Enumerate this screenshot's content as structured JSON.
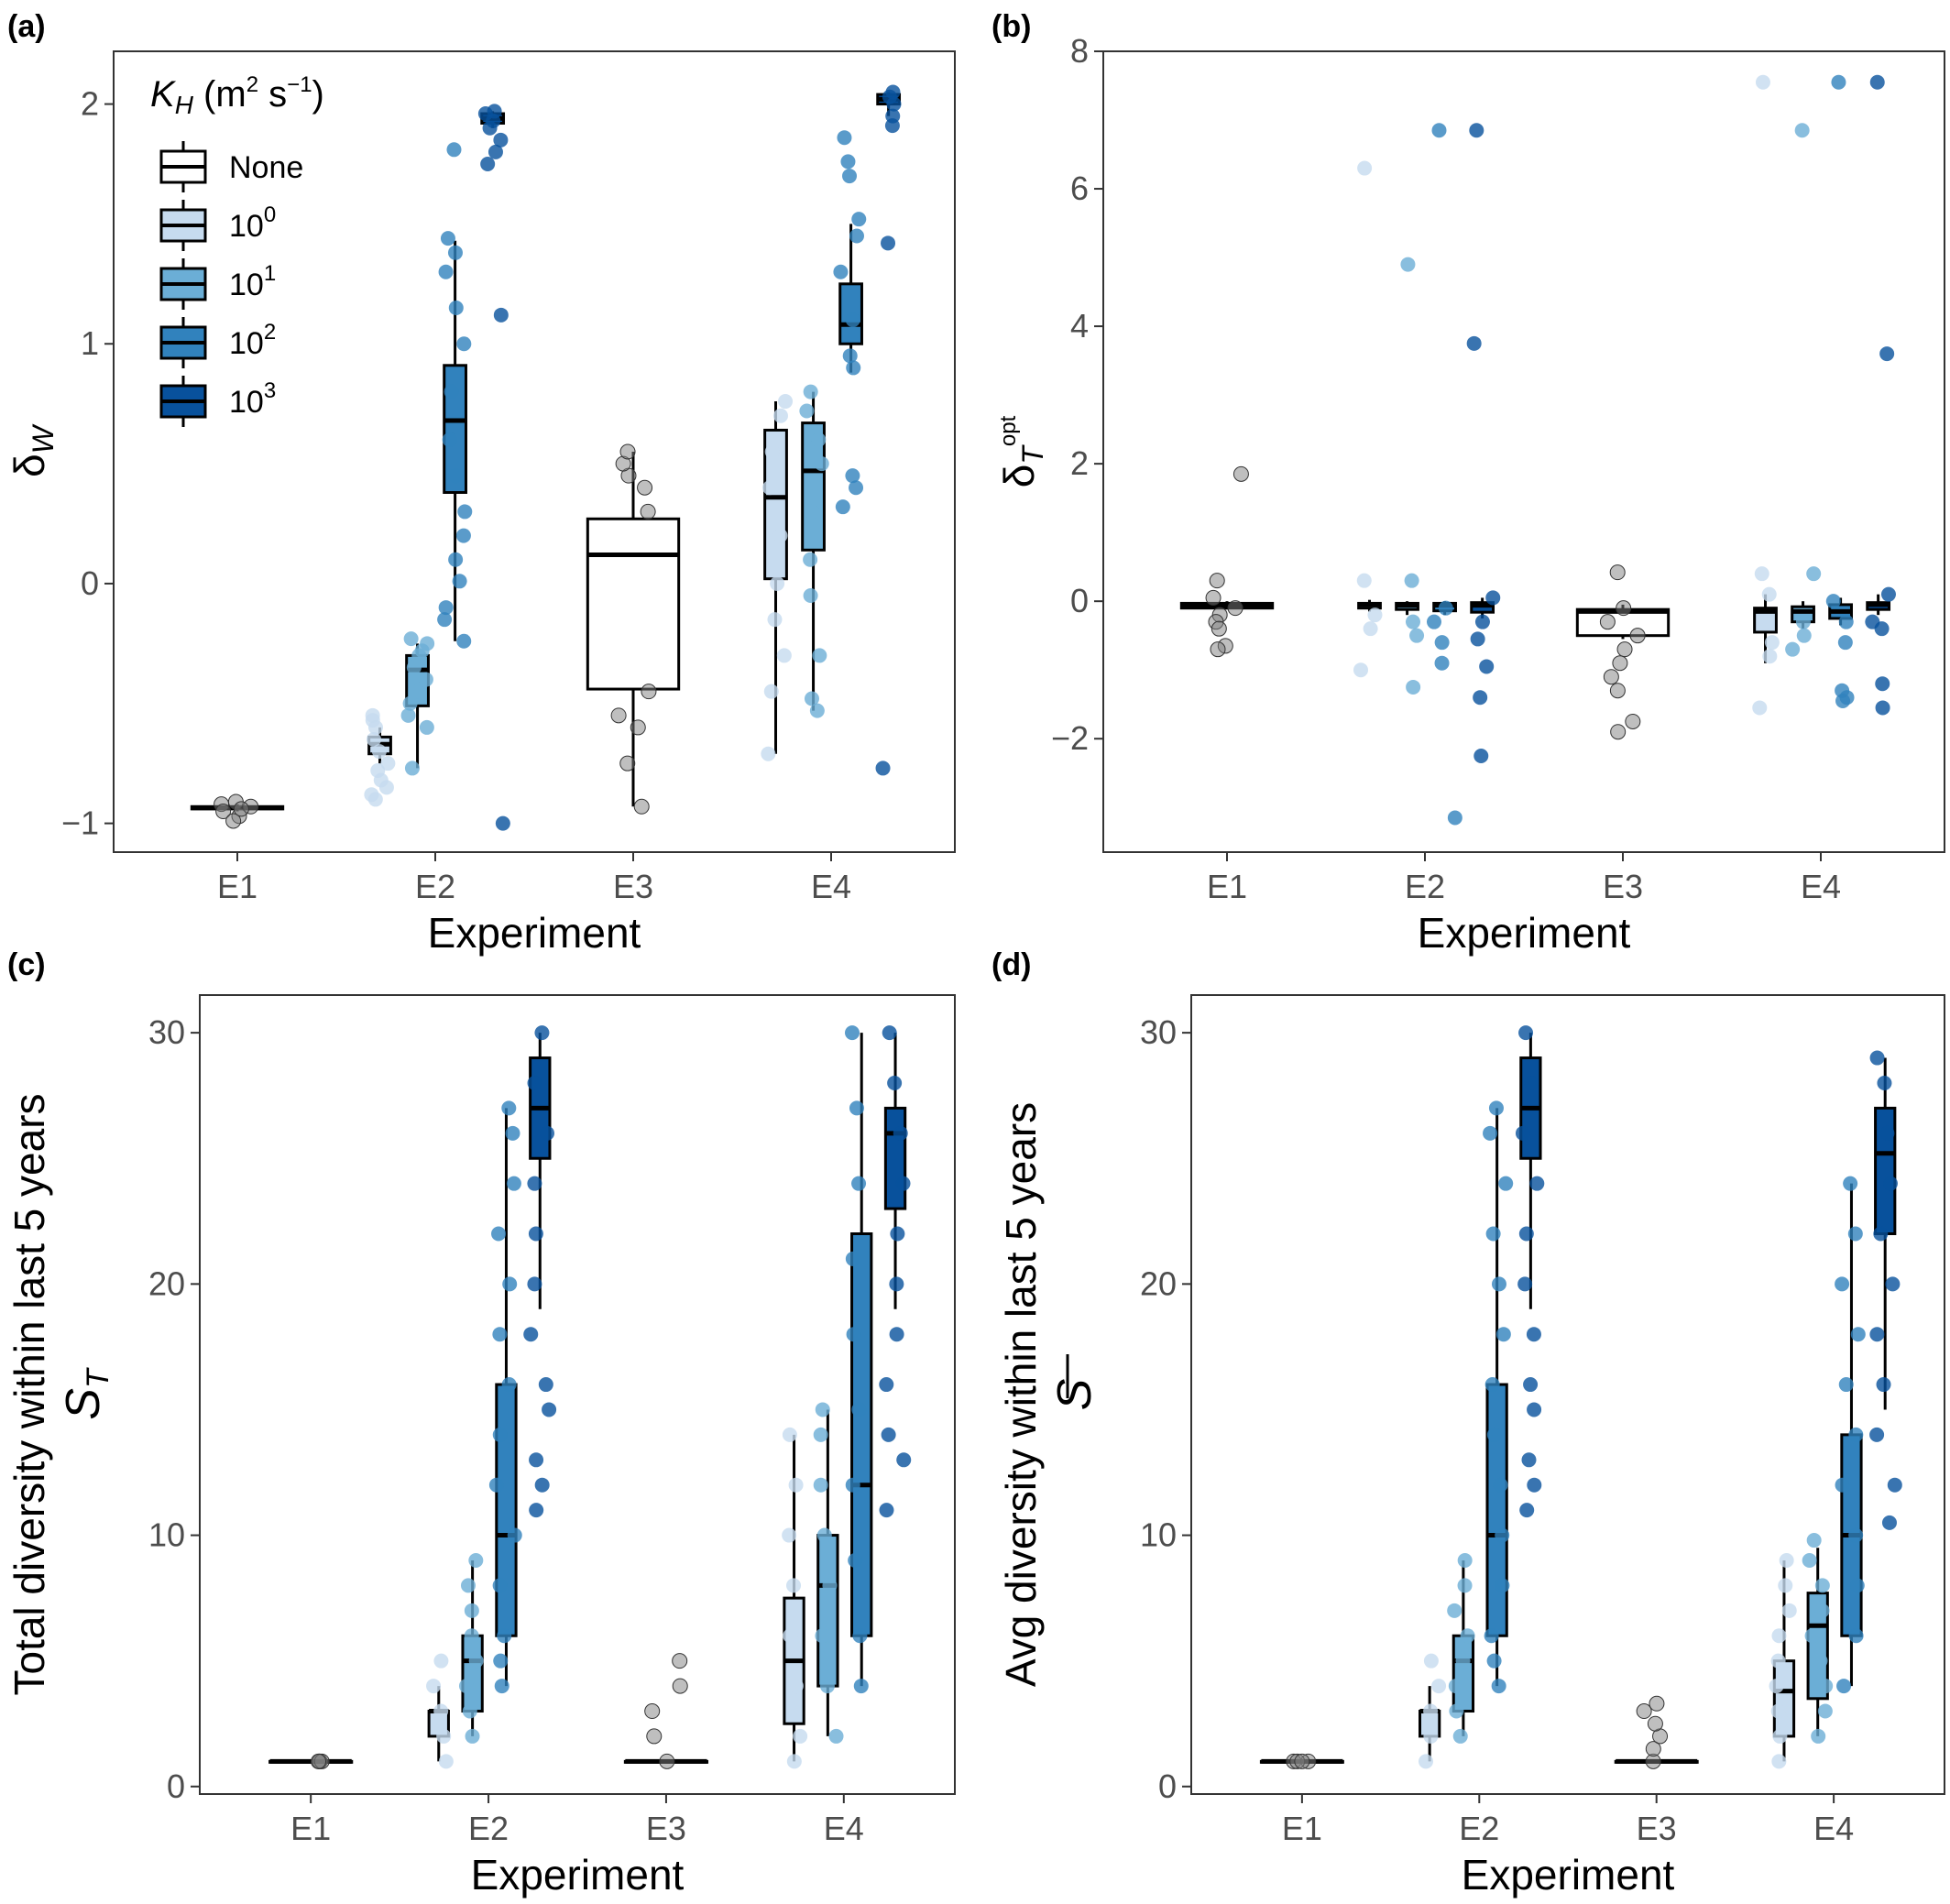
{
  "legend": {
    "title_main": "K",
    "title_sub": "H",
    "title_unit": "(m",
    "title_unit_sup": "2",
    "title_unit_rest": "s",
    "title_unit_sup2": "−1",
    "title_close": ")",
    "placement": "top-left inside panel (a)",
    "items": [
      {
        "label": "None",
        "base": "",
        "exp": "",
        "color": "#ffffff"
      },
      {
        "label": "",
        "base": "10",
        "exp": "0",
        "color": "#c6dbef"
      },
      {
        "label": "",
        "base": "10",
        "exp": "1",
        "color": "#6baed6"
      },
      {
        "label": "",
        "base": "10",
        "exp": "2",
        "color": "#3182bd"
      },
      {
        "label": "",
        "base": "10",
        "exp": "3",
        "color": "#08519c"
      }
    ]
  },
  "chart_data": [
    {
      "panel": "(a)",
      "type": "box",
      "xlabel": "Experiment",
      "ylabel_main": "δ",
      "ylabel_sub": "W",
      "ylabel_sup": "",
      "ylim": [
        -1.12,
        2.22
      ],
      "yticks": [
        -1,
        0,
        1,
        2
      ],
      "yticklabels": [
        "−1",
        "0",
        "1",
        "2"
      ],
      "categories": [
        "E1",
        "E2",
        "E3",
        "E4"
      ],
      "grid": false,
      "boxes": [
        {
          "cat": 0,
          "kh": 0,
          "q1": -0.94,
          "median": -0.935,
          "q3": -0.93,
          "whisker_low": -0.95,
          "whisker_high": -0.92,
          "points": [
            -0.92,
            -0.93,
            -0.95,
            -0.97,
            -0.99,
            -0.91,
            -0.94
          ]
        },
        {
          "cat": 1,
          "kh": 1,
          "q1": -0.71,
          "median": -0.67,
          "q3": -0.64,
          "whisker_low": -0.75,
          "whisker_high": -0.6,
          "points": [
            -0.9,
            -0.88,
            -0.85,
            -0.82,
            -0.78,
            -0.75,
            -0.7,
            -0.65,
            -0.6,
            -0.57,
            -0.55
          ]
        },
        {
          "cat": 1,
          "kh": 2,
          "q1": -0.51,
          "median": -0.36,
          "q3": -0.3,
          "whisker_low": -0.77,
          "whisker_high": -0.25,
          "points": [
            -0.77,
            -0.6,
            -0.55,
            -0.5,
            -0.45,
            -0.4,
            -0.35,
            -0.3,
            -0.28,
            -0.25,
            -0.23
          ]
        },
        {
          "cat": 1,
          "kh": 3,
          "q1": 0.38,
          "median": 0.68,
          "q3": 0.91,
          "whisker_low": -0.24,
          "whisker_high": 1.43,
          "points": [
            -0.24,
            -0.15,
            -0.1,
            0.01,
            0.1,
            0.2,
            0.3,
            0.45,
            0.6,
            0.8,
            1.0,
            1.15,
            1.3,
            1.38,
            1.44,
            1.81
          ]
        },
        {
          "cat": 1,
          "kh": 4,
          "q1": 1.92,
          "median": 1.94,
          "q3": 1.96,
          "whisker_low": 1.9,
          "whisker_high": 1.97,
          "points": [
            1.97,
            1.96,
            1.93,
            1.9,
            1.85,
            1.8,
            1.75,
            1.12,
            -1.0
          ]
        },
        {
          "cat": 2,
          "kh": 0,
          "q1": -0.44,
          "median": 0.12,
          "q3": 0.27,
          "whisker_low": -0.93,
          "whisker_high": 0.55,
          "points": [
            -0.93,
            -0.75,
            -0.6,
            -0.55,
            -0.45,
            0.3,
            0.4,
            0.45,
            0.5,
            0.55
          ]
        },
        {
          "cat": 3,
          "kh": 1,
          "q1": 0.02,
          "median": 0.36,
          "q3": 0.64,
          "whisker_low": -0.71,
          "whisker_high": 0.76,
          "points": [
            -0.71,
            -0.45,
            -0.3,
            -0.15,
            0.0,
            0.2,
            0.4,
            0.55,
            0.7,
            0.76
          ]
        },
        {
          "cat": 3,
          "kh": 2,
          "q1": 0.14,
          "median": 0.47,
          "q3": 0.67,
          "whisker_low": -0.53,
          "whisker_high": 0.8,
          "points": [
            -0.53,
            -0.48,
            -0.3,
            -0.05,
            0.1,
            0.3,
            0.5,
            0.6,
            0.72,
            0.8
          ]
        },
        {
          "cat": 3,
          "kh": 3,
          "q1": 1.0,
          "median": 1.08,
          "q3": 1.25,
          "whisker_low": 0.88,
          "whisker_high": 1.5,
          "points": [
            0.32,
            0.4,
            0.45,
            0.9,
            0.95,
            1.1,
            1.3,
            1.45,
            1.52,
            1.7,
            1.76,
            1.86
          ]
        },
        {
          "cat": 3,
          "kh": 4,
          "q1": 2.0,
          "median": 2.02,
          "q3": 2.04,
          "whisker_low": 1.95,
          "whisker_high": 2.05,
          "points": [
            2.05,
            2.03,
            2.0,
            1.95,
            1.91,
            1.42,
            -0.77
          ]
        }
      ]
    },
    {
      "panel": "(b)",
      "type": "box",
      "xlabel": "Experiment",
      "ylabel_main": "δ",
      "ylabel_sub": "T",
      "ylabel_sup": "opt",
      "ylim": [
        -3.65,
        8.0
      ],
      "yticks": [
        -2,
        0,
        2,
        4,
        6,
        8
      ],
      "yticklabels": [
        "−2",
        "0",
        "2",
        "4",
        "6",
        "8"
      ],
      "categories": [
        "E1",
        "E2",
        "E3",
        "E4"
      ],
      "grid": false,
      "boxes": [
        {
          "cat": 0,
          "kh": 0,
          "q1": -0.1,
          "median": -0.06,
          "q3": -0.03,
          "whisker_low": -0.12,
          "whisker_high": 0.0,
          "points": [
            1.85,
            0.3,
            0.05,
            -0.1,
            -0.2,
            -0.3,
            -0.4,
            -0.65,
            -0.7
          ]
        },
        {
          "cat": 1,
          "kh": 1,
          "q1": -0.1,
          "median": -0.05,
          "q3": -0.03,
          "whisker_low": -0.15,
          "whisker_high": 0.02,
          "points": [
            6.3,
            0.3,
            -0.2,
            -0.4,
            -1.0
          ]
        },
        {
          "cat": 1,
          "kh": 2,
          "q1": -0.12,
          "median": -0.06,
          "q3": -0.03,
          "whisker_low": -0.2,
          "whisker_high": 0.0,
          "points": [
            4.9,
            0.3,
            -0.3,
            -0.5,
            -1.25
          ]
        },
        {
          "cat": 1,
          "kh": 3,
          "q1": -0.14,
          "median": -0.06,
          "q3": -0.03,
          "whisker_low": -0.2,
          "whisker_high": 0.0,
          "points": [
            6.85,
            -0.1,
            -0.3,
            -0.6,
            -0.9,
            -3.15
          ]
        },
        {
          "cat": 1,
          "kh": 4,
          "q1": -0.16,
          "median": -0.06,
          "q3": -0.02,
          "whisker_low": -0.25,
          "whisker_high": 0.05,
          "points": [
            6.85,
            3.75,
            0.05,
            -0.3,
            -0.55,
            -0.95,
            -1.4,
            -2.25
          ]
        },
        {
          "cat": 2,
          "kh": 0,
          "q1": -0.5,
          "median": -0.15,
          "q3": -0.12,
          "whisker_low": -0.55,
          "whisker_high": -0.05,
          "points": [
            0.42,
            -0.1,
            -0.3,
            -0.5,
            -0.7,
            -0.9,
            -1.1,
            -1.3,
            -1.75,
            -1.9
          ]
        },
        {
          "cat": 3,
          "kh": 1,
          "q1": -0.45,
          "median": -0.15,
          "q3": -0.1,
          "whisker_low": -0.9,
          "whisker_high": 0.1,
          "points": [
            7.55,
            0.4,
            0.1,
            -0.3,
            -0.6,
            -0.8,
            -1.55
          ]
        },
        {
          "cat": 3,
          "kh": 2,
          "q1": -0.3,
          "median": -0.15,
          "q3": -0.08,
          "whisker_low": -0.4,
          "whisker_high": 0.0,
          "points": [
            6.85,
            0.4,
            -0.3,
            -0.5,
            -0.7
          ]
        },
        {
          "cat": 3,
          "kh": 3,
          "q1": -0.25,
          "median": -0.15,
          "q3": -0.05,
          "whisker_low": -0.35,
          "whisker_high": 0.05,
          "points": [
            7.55,
            0.0,
            -0.3,
            -0.6,
            -1.3,
            -1.4,
            -1.45
          ]
        },
        {
          "cat": 3,
          "kh": 4,
          "q1": -0.12,
          "median": -0.05,
          "q3": -0.02,
          "whisker_low": -0.2,
          "whisker_high": 0.1,
          "points": [
            7.55,
            3.6,
            0.1,
            -0.3,
            -0.4,
            -1.2,
            -1.55
          ]
        }
      ]
    },
    {
      "panel": "(c)",
      "type": "box",
      "xlabel": "Experiment",
      "ylabel_main": "S",
      "ylabel_sub": "T",
      "ylabel_sup": "",
      "ylabel_line2": "Total diversity within last 5 years",
      "ylim": [
        -0.3,
        31.5
      ],
      "yticks": [
        0,
        10,
        20,
        30
      ],
      "yticklabels": [
        "0",
        "10",
        "20",
        "30"
      ],
      "categories": [
        "E1",
        "E2",
        "E3",
        "E4"
      ],
      "grid": false,
      "boxes": [
        {
          "cat": 0,
          "kh": 0,
          "q1": 1,
          "median": 1,
          "q3": 1,
          "whisker_low": 1,
          "whisker_high": 1,
          "points": [
            1,
            1,
            1,
            1
          ]
        },
        {
          "cat": 1,
          "kh": 1,
          "q1": 2,
          "median": 3,
          "q3": 3,
          "whisker_low": 1,
          "whisker_high": 4,
          "points": [
            1,
            2,
            3,
            4,
            5
          ]
        },
        {
          "cat": 1,
          "kh": 2,
          "q1": 3,
          "median": 5,
          "q3": 6,
          "whisker_low": 2,
          "whisker_high": 9,
          "points": [
            2,
            3,
            4,
            5,
            6,
            7,
            8,
            9
          ]
        },
        {
          "cat": 1,
          "kh": 3,
          "q1": 6,
          "median": 10,
          "q3": 16,
          "whisker_low": 4,
          "whisker_high": 27,
          "points": [
            4,
            5,
            6,
            8,
            10,
            12,
            14,
            16,
            18,
            20,
            22,
            24,
            26,
            27
          ]
        },
        {
          "cat": 1,
          "kh": 4,
          "q1": 25,
          "median": 27,
          "q3": 29,
          "whisker_low": 19,
          "whisker_high": 30,
          "points": [
            11,
            12,
            13,
            15,
            16,
            18,
            20,
            22,
            24,
            26,
            28,
            30
          ]
        },
        {
          "cat": 2,
          "kh": 0,
          "q1": 1,
          "median": 1,
          "q3": 1,
          "whisker_low": 1,
          "whisker_high": 1,
          "points": [
            1,
            2,
            3,
            4,
            5
          ]
        },
        {
          "cat": 3,
          "kh": 1,
          "q1": 2.5,
          "median": 5,
          "q3": 7.5,
          "whisker_low": 1,
          "whisker_high": 14,
          "points": [
            1,
            2,
            4,
            6,
            8,
            10,
            12,
            14
          ]
        },
        {
          "cat": 3,
          "kh": 2,
          "q1": 4,
          "median": 8,
          "q3": 10,
          "whisker_low": 2,
          "whisker_high": 15,
          "points": [
            2,
            4,
            6,
            8,
            10,
            12,
            14,
            15
          ]
        },
        {
          "cat": 3,
          "kh": 3,
          "q1": 6,
          "median": 12,
          "q3": 22,
          "whisker_low": 4,
          "whisker_high": 30,
          "points": [
            4,
            6,
            9,
            12,
            15,
            18,
            21,
            24,
            27,
            30
          ]
        },
        {
          "cat": 3,
          "kh": 4,
          "q1": 23,
          "median": 26,
          "q3": 27,
          "whisker_low": 19,
          "whisker_high": 30,
          "points": [
            11,
            13,
            14,
            16,
            18,
            20,
            22,
            24,
            26,
            28,
            30
          ]
        }
      ]
    },
    {
      "panel": "(d)",
      "type": "box",
      "xlabel": "Experiment",
      "ylabel_main": "S",
      "ylabel_sub": "",
      "ylabel_sup": "",
      "ylabel_overbar": true,
      "ylabel_line2": "Avg diversity within last 5 years",
      "ylim": [
        -0.3,
        31.5
      ],
      "yticks": [
        0,
        10,
        20,
        30
      ],
      "yticklabels": [
        "0",
        "10",
        "20",
        "30"
      ],
      "categories": [
        "E1",
        "E2",
        "E3",
        "E4"
      ],
      "grid": false,
      "boxes": [
        {
          "cat": 0,
          "kh": 0,
          "q1": 1,
          "median": 1,
          "q3": 1,
          "whisker_low": 1,
          "whisker_high": 1,
          "points": [
            1,
            1,
            1,
            1
          ]
        },
        {
          "cat": 1,
          "kh": 1,
          "q1": 2,
          "median": 3,
          "q3": 3,
          "whisker_low": 1,
          "whisker_high": 4,
          "points": [
            1,
            2,
            3,
            4,
            5
          ]
        },
        {
          "cat": 1,
          "kh": 2,
          "q1": 3,
          "median": 5,
          "q3": 6,
          "whisker_low": 2,
          "whisker_high": 9,
          "points": [
            2,
            3,
            4,
            5,
            6,
            7,
            8,
            9
          ]
        },
        {
          "cat": 1,
          "kh": 3,
          "q1": 6,
          "median": 10,
          "q3": 16,
          "whisker_low": 4,
          "whisker_high": 27,
          "points": [
            4,
            5,
            6,
            8,
            10,
            12,
            14,
            16,
            18,
            20,
            22,
            24,
            26,
            27
          ]
        },
        {
          "cat": 1,
          "kh": 4,
          "q1": 25,
          "median": 27,
          "q3": 29,
          "whisker_low": 19,
          "whisker_high": 30,
          "points": [
            11,
            12,
            13,
            15,
            16,
            18,
            20,
            22,
            24,
            26,
            28,
            30
          ]
        },
        {
          "cat": 2,
          "kh": 0,
          "q1": 1,
          "median": 1,
          "q3": 1,
          "whisker_low": 1,
          "whisker_high": 1,
          "points": [
            1,
            1.5,
            2,
            2.5,
            3,
            3.3
          ]
        },
        {
          "cat": 3,
          "kh": 1,
          "q1": 2,
          "median": 3.8,
          "q3": 5,
          "whisker_low": 1,
          "whisker_high": 9,
          "points": [
            1,
            2,
            3,
            4,
            5,
            6,
            7,
            8,
            9
          ]
        },
        {
          "cat": 3,
          "kh": 2,
          "q1": 3.5,
          "median": 6.4,
          "q3": 7.7,
          "whisker_low": 2,
          "whisker_high": 9.5,
          "points": [
            2,
            3,
            4,
            5,
            6,
            7,
            8,
            9,
            9.8
          ]
        },
        {
          "cat": 3,
          "kh": 3,
          "q1": 6,
          "median": 10,
          "q3": 14,
          "whisker_low": 4,
          "whisker_high": 24,
          "points": [
            4,
            6,
            8,
            10,
            12,
            14,
            16,
            18,
            20,
            22,
            24
          ]
        },
        {
          "cat": 3,
          "kh": 4,
          "q1": 22,
          "median": 25.2,
          "q3": 27,
          "whisker_low": 15,
          "whisker_high": 29,
          "points": [
            10.5,
            12,
            14,
            16,
            18,
            20,
            22,
            24,
            26,
            28,
            29
          ]
        }
      ]
    }
  ]
}
